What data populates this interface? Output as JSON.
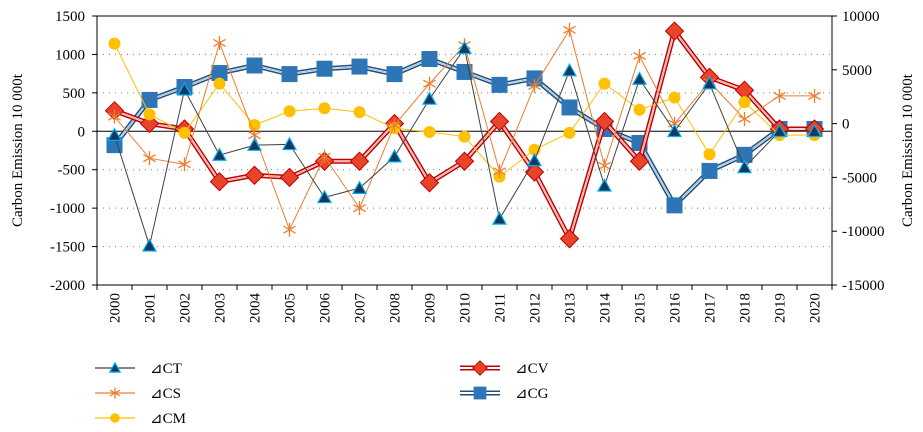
{
  "chart_data": {
    "type": "line",
    "x": [
      "2000",
      "2001",
      "2002",
      "2003",
      "2004",
      "2005",
      "2006",
      "2007",
      "2008",
      "2009",
      "2010",
      "2011",
      "2012",
      "2013",
      "2014",
      "2015",
      "2016",
      "2017",
      "2018",
      "2019",
      "2020"
    ],
    "ylabel": "Carbon Emission 10 000t",
    "y2label": "Carbon Emission 10 000t",
    "ylim": [
      -2000,
      1500
    ],
    "y2lim": [
      -15000,
      10000
    ],
    "yticks": [
      "1500",
      "1000",
      "500",
      "0",
      "-500",
      "-1000",
      "-1500",
      "-2000"
    ],
    "y2ticks": [
      "10000",
      "5000",
      "0",
      "-5000",
      "-10000",
      "-15000"
    ],
    "yticks_values": [
      1500,
      1000,
      500,
      0,
      -500,
      -1000,
      -1500,
      -2000
    ],
    "y2ticks_values": [
      10000,
      5000,
      0,
      -5000,
      -10000,
      -15000
    ],
    "grid": "horizontal dotted",
    "legend_position": "bottom",
    "series": [
      {
        "name": "⊿CT",
        "axis": "left",
        "color": "#404040",
        "marker": "triangle",
        "values": [
          -50,
          -1490,
          540,
          -310,
          -180,
          -170,
          -860,
          -740,
          -330,
          420,
          1080,
          -1140,
          -380,
          790,
          -710,
          680,
          0,
          620,
          -470,
          0,
          0
        ]
      },
      {
        "name": "⊿CS",
        "axis": "left",
        "color": "#ed7d31",
        "marker": "star",
        "values": [
          190,
          -350,
          -430,
          1150,
          -50,
          -1280,
          -330,
          -1000,
          80,
          620,
          1120,
          -520,
          590,
          1320,
          -450,
          980,
          100,
          640,
          160,
          460,
          460
        ]
      },
      {
        "name": "⊿CM",
        "axis": "left",
        "color": "#ffc000",
        "marker": "circle",
        "values": [
          1140,
          220,
          -20,
          620,
          80,
          260,
          300,
          250,
          40,
          -10,
          -70,
          -590,
          -240,
          -20,
          620,
          280,
          440,
          -300,
          380,
          -50,
          -50
        ]
      },
      {
        "name": "⊿CV",
        "axis": "right",
        "color": "#e8442a",
        "marker": "diamond",
        "values": [
          1200,
          0,
          -500,
          -5400,
          -4800,
          -5000,
          -3500,
          -3500,
          0,
          -5500,
          -3500,
          200,
          -4500,
          -10700,
          200,
          -3500,
          8600,
          4300,
          3100,
          -500,
          -500
        ]
      },
      {
        "name": "⊿CG",
        "axis": "right",
        "color": "#2e75b6",
        "marker": "square",
        "values": [
          -2000,
          2200,
          3400,
          4700,
          5400,
          4600,
          5100,
          5300,
          4600,
          6000,
          4800,
          3600,
          4200,
          1500,
          -500,
          -1800,
          -7600,
          -4400,
          -2900,
          -500,
          -500
        ]
      }
    ]
  }
}
